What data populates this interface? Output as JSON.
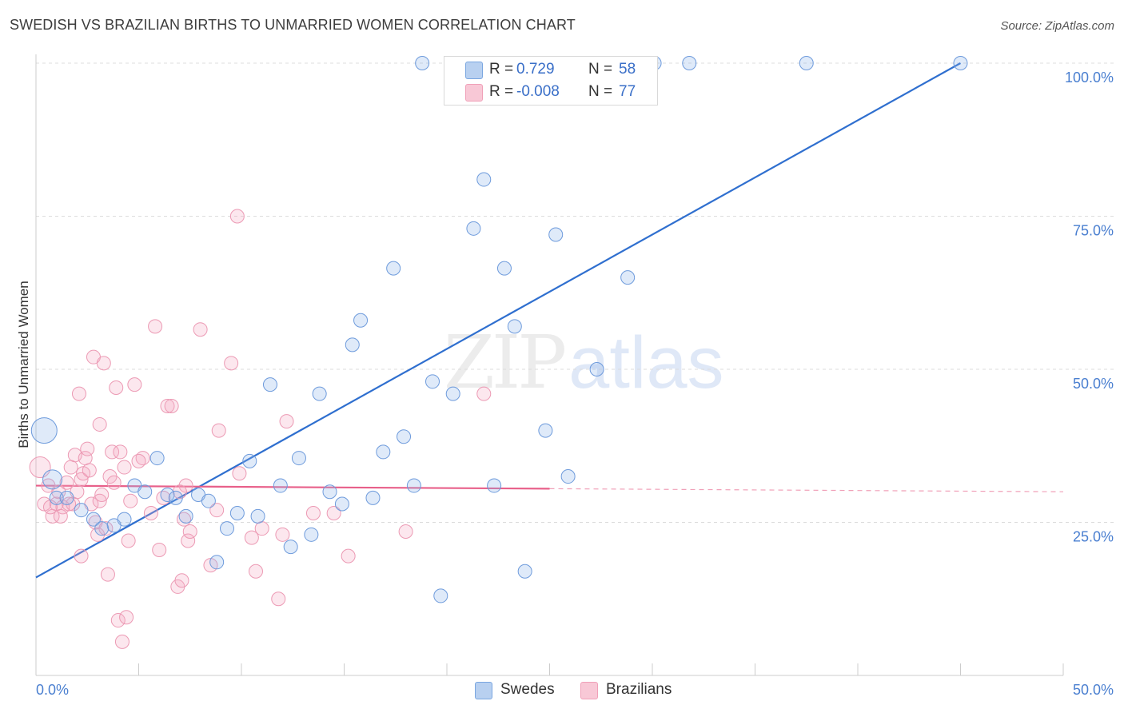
{
  "title": "SWEDISH VS BRAZILIAN BIRTHS TO UNMARRIED WOMEN CORRELATION CHART",
  "source": "Source: ZipAtlas.com",
  "watermark": {
    "zip": "ZIP",
    "atlas": "atlas"
  },
  "legend": {
    "rows": [
      {
        "r_label": "R =",
        "r_value": "0.729",
        "n_label": "N =",
        "n_value": "58"
      },
      {
        "r_label": "R =",
        "r_value": "-0.008",
        "n_label": "N =",
        "n_value": "77"
      }
    ]
  },
  "bottom_legend": {
    "swedes": "Swedes",
    "brazilians": "Brazilians"
  },
  "chart_data": {
    "type": "scatter",
    "title": "SWEDISH VS BRAZILIAN BIRTHS TO UNMARRIED WOMEN CORRELATION CHART",
    "xlabel": "",
    "ylabel": "Births to Unmarried Women",
    "xlim": [
      0,
      50
    ],
    "ylim": [
      0,
      100
    ],
    "x_tick_labels": [
      "0.0%",
      "50.0%"
    ],
    "y_ticks": [
      25,
      50,
      75,
      100
    ],
    "y_tick_labels": [
      "25.0%",
      "50.0%",
      "75.0%",
      "100.0%"
    ],
    "grid": true,
    "colors": {
      "swedes": "#7aa6e0",
      "swedes_line": "#2f6fcf",
      "brazilians": "#f0a0b8",
      "brazilians_line": "#e8608a"
    },
    "series": [
      {
        "name": "Swedes",
        "r": 0.729,
        "n": 58,
        "trend": {
          "x": [
            0,
            45
          ],
          "y": [
            16,
            100
          ]
        },
        "points": [
          {
            "x": 0.4,
            "y": 40,
            "s": 3
          },
          {
            "x": 0.8,
            "y": 32,
            "s": 2
          },
          {
            "x": 1.0,
            "y": 29
          },
          {
            "x": 1.5,
            "y": 29
          },
          {
            "x": 2.2,
            "y": 27
          },
          {
            "x": 2.8,
            "y": 25.5
          },
          {
            "x": 3.2,
            "y": 24
          },
          {
            "x": 3.8,
            "y": 24.5
          },
          {
            "x": 4.3,
            "y": 25.5
          },
          {
            "x": 4.8,
            "y": 31
          },
          {
            "x": 5.3,
            "y": 30
          },
          {
            "x": 5.9,
            "y": 35.5
          },
          {
            "x": 6.4,
            "y": 29.5
          },
          {
            "x": 6.8,
            "y": 29
          },
          {
            "x": 7.3,
            "y": 26
          },
          {
            "x": 7.9,
            "y": 29.5
          },
          {
            "x": 8.4,
            "y": 28.5
          },
          {
            "x": 8.8,
            "y": 18.5
          },
          {
            "x": 9.3,
            "y": 24
          },
          {
            "x": 9.8,
            "y": 26.5
          },
          {
            "x": 10.4,
            "y": 35
          },
          {
            "x": 10.8,
            "y": 26
          },
          {
            "x": 11.4,
            "y": 47.5
          },
          {
            "x": 11.9,
            "y": 31
          },
          {
            "x": 12.4,
            "y": 21
          },
          {
            "x": 12.8,
            "y": 35.5
          },
          {
            "x": 13.4,
            "y": 23
          },
          {
            "x": 13.8,
            "y": 46
          },
          {
            "x": 14.3,
            "y": 30
          },
          {
            "x": 14.9,
            "y": 28
          },
          {
            "x": 15.4,
            "y": 54
          },
          {
            "x": 15.8,
            "y": 58
          },
          {
            "x": 16.4,
            "y": 29
          },
          {
            "x": 16.9,
            "y": 36.5
          },
          {
            "x": 17.4,
            "y": 66.5
          },
          {
            "x": 17.9,
            "y": 39
          },
          {
            "x": 18.4,
            "y": 31
          },
          {
            "x": 18.8,
            "y": 100
          },
          {
            "x": 19.3,
            "y": 48
          },
          {
            "x": 19.7,
            "y": 13
          },
          {
            "x": 20.3,
            "y": 46
          },
          {
            "x": 20.8,
            "y": 100
          },
          {
            "x": 21.3,
            "y": 73
          },
          {
            "x": 21.8,
            "y": 81
          },
          {
            "x": 22.3,
            "y": 31
          },
          {
            "x": 22.8,
            "y": 66.5
          },
          {
            "x": 23.3,
            "y": 57
          },
          {
            "x": 23.8,
            "y": 17
          },
          {
            "x": 24.3,
            "y": 100
          },
          {
            "x": 24.8,
            "y": 40
          },
          {
            "x": 25.3,
            "y": 72
          },
          {
            "x": 25.9,
            "y": 32.5
          },
          {
            "x": 27.3,
            "y": 50
          },
          {
            "x": 28.8,
            "y": 65
          },
          {
            "x": 30.1,
            "y": 100
          },
          {
            "x": 31.8,
            "y": 100
          },
          {
            "x": 37.5,
            "y": 100
          },
          {
            "x": 45.0,
            "y": 100
          }
        ]
      },
      {
        "name": "Brazilians",
        "r": -0.008,
        "n": 77,
        "trend": {
          "x": [
            0,
            25
          ],
          "y": [
            31,
            30.5
          ]
        },
        "trend_dashed": {
          "x": [
            25,
            50
          ],
          "y": [
            30.5,
            30
          ]
        },
        "points": [
          {
            "x": 0.2,
            "y": 34,
            "s": 2
          },
          {
            "x": 0.4,
            "y": 28
          },
          {
            "x": 0.6,
            "y": 31
          },
          {
            "x": 0.8,
            "y": 26
          },
          {
            "x": 1.0,
            "y": 28
          },
          {
            "x": 1.1,
            "y": 30
          },
          {
            "x": 1.3,
            "y": 27.5
          },
          {
            "x": 1.5,
            "y": 31.5
          },
          {
            "x": 1.7,
            "y": 34
          },
          {
            "x": 1.8,
            "y": 28
          },
          {
            "x": 1.9,
            "y": 36
          },
          {
            "x": 2.0,
            "y": 30
          },
          {
            "x": 2.1,
            "y": 46
          },
          {
            "x": 2.2,
            "y": 32
          },
          {
            "x": 2.3,
            "y": 33
          },
          {
            "x": 2.4,
            "y": 35.5
          },
          {
            "x": 2.5,
            "y": 37
          },
          {
            "x": 2.6,
            "y": 33.5
          },
          {
            "x": 2.7,
            "y": 28
          },
          {
            "x": 2.8,
            "y": 52
          },
          {
            "x": 2.9,
            "y": 25
          },
          {
            "x": 3.0,
            "y": 23
          },
          {
            "x": 3.1,
            "y": 41
          },
          {
            "x": 3.2,
            "y": 29.5
          },
          {
            "x": 3.3,
            "y": 51
          },
          {
            "x": 3.4,
            "y": 24
          },
          {
            "x": 3.5,
            "y": 16.5
          },
          {
            "x": 3.6,
            "y": 32.5
          },
          {
            "x": 3.7,
            "y": 36.5
          },
          {
            "x": 3.8,
            "y": 31.5
          },
          {
            "x": 3.9,
            "y": 47
          },
          {
            "x": 4.0,
            "y": 9
          },
          {
            "x": 4.1,
            "y": 36.5
          },
          {
            "x": 4.2,
            "y": 5.5
          },
          {
            "x": 4.3,
            "y": 34
          },
          {
            "x": 4.4,
            "y": 9.5
          },
          {
            "x": 4.5,
            "y": 22
          },
          {
            "x": 4.6,
            "y": 28.5
          },
          {
            "x": 4.8,
            "y": 47.5
          },
          {
            "x": 5.2,
            "y": 35.5
          },
          {
            "x": 5.6,
            "y": 26.5
          },
          {
            "x": 5.8,
            "y": 57
          },
          {
            "x": 6.0,
            "y": 20.5
          },
          {
            "x": 6.4,
            "y": 44
          },
          {
            "x": 6.6,
            "y": 44
          },
          {
            "x": 6.9,
            "y": 14.5
          },
          {
            "x": 7.1,
            "y": 15.5
          },
          {
            "x": 7.2,
            "y": 25.5
          },
          {
            "x": 7.3,
            "y": 31
          },
          {
            "x": 7.4,
            "y": 22
          },
          {
            "x": 7.5,
            "y": 23.5
          },
          {
            "x": 8.0,
            "y": 56.5
          },
          {
            "x": 8.5,
            "y": 18
          },
          {
            "x": 8.8,
            "y": 27
          },
          {
            "x": 8.9,
            "y": 40
          },
          {
            "x": 9.5,
            "y": 51
          },
          {
            "x": 9.8,
            "y": 75
          },
          {
            "x": 9.9,
            "y": 33
          },
          {
            "x": 10.5,
            "y": 22.5
          },
          {
            "x": 10.7,
            "y": 17
          },
          {
            "x": 11.0,
            "y": 24
          },
          {
            "x": 11.8,
            "y": 12.5
          },
          {
            "x": 12.0,
            "y": 23
          },
          {
            "x": 12.2,
            "y": 41.5
          },
          {
            "x": 13.5,
            "y": 26.5
          },
          {
            "x": 14.5,
            "y": 26.5
          },
          {
            "x": 15.2,
            "y": 19.5
          },
          {
            "x": 18.0,
            "y": 23.5
          },
          {
            "x": 21.8,
            "y": 46
          },
          {
            "x": 0.7,
            "y": 27.5
          },
          {
            "x": 1.2,
            "y": 26
          },
          {
            "x": 1.6,
            "y": 28
          },
          {
            "x": 2.2,
            "y": 19.5
          },
          {
            "x": 3.1,
            "y": 28.5
          },
          {
            "x": 5.0,
            "y": 35
          },
          {
            "x": 6.2,
            "y": 29
          },
          {
            "x": 7.0,
            "y": 30
          }
        ]
      }
    ]
  }
}
